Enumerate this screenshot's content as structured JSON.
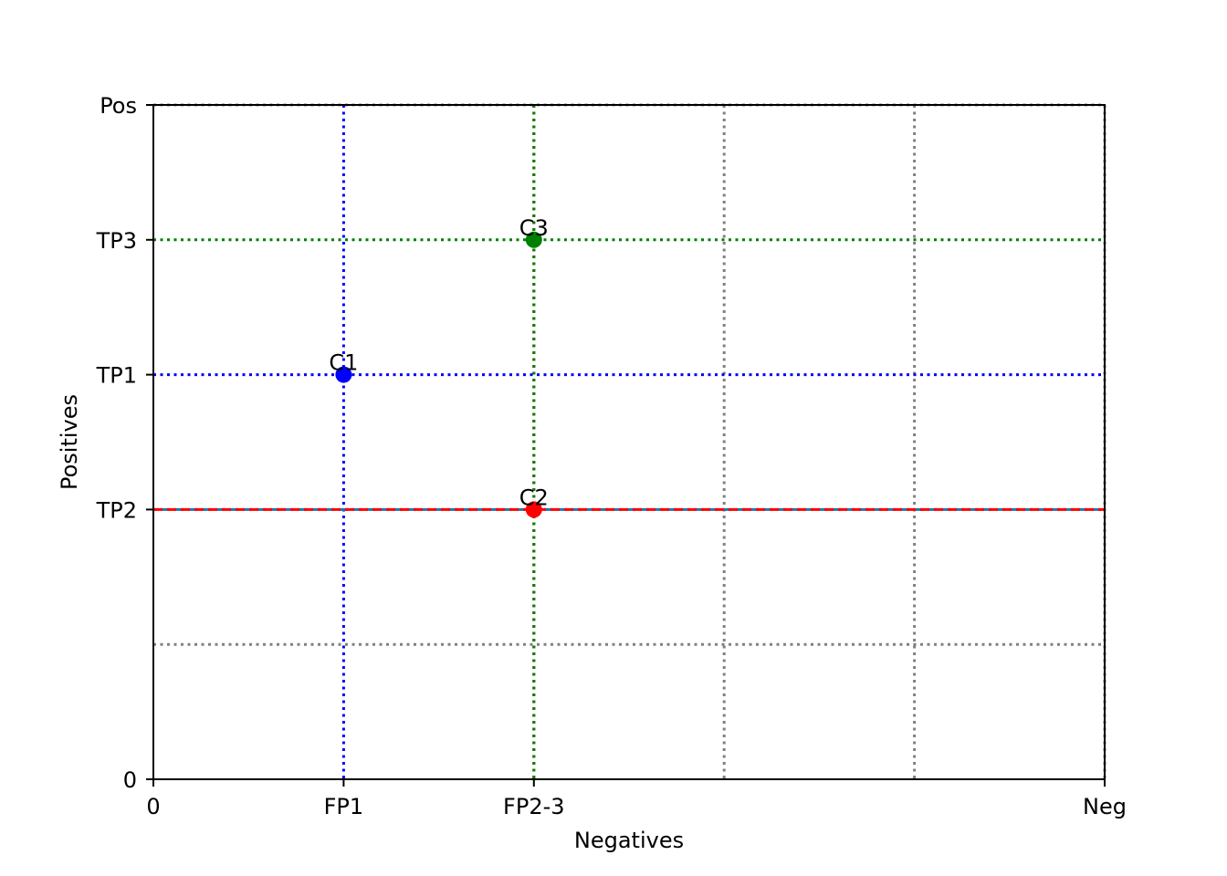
{
  "chart_data": {
    "type": "scatter",
    "xlabel": "Negatives",
    "ylabel": "Positives",
    "xlim": [
      0,
      5
    ],
    "ylim": [
      0,
      5
    ],
    "x_ticks": [
      {
        "value": 0,
        "label": "0"
      },
      {
        "value": 1,
        "label": "FP1"
      },
      {
        "value": 2,
        "label": "FP2-3"
      },
      {
        "value": 5,
        "label": "Neg"
      }
    ],
    "y_ticks": [
      {
        "value": 0,
        "label": "0"
      },
      {
        "value": 2,
        "label": "TP2"
      },
      {
        "value": 3,
        "label": "TP1"
      },
      {
        "value": 4,
        "label": "TP3"
      },
      {
        "value": 5,
        "label": "Pos"
      }
    ],
    "grid": {
      "vertical_gray": [
        3,
        4,
        5
      ],
      "horizontal_gray": [
        1,
        5
      ],
      "color": "#808080",
      "style": "dotted"
    },
    "points": [
      {
        "label": "C1",
        "x": 1,
        "y": 3,
        "color": "#0000ff",
        "line_style": "dotted"
      },
      {
        "label": "C2",
        "x": 2,
        "y": 2,
        "color": "#ff0000",
        "line_style": "dashed"
      },
      {
        "label": "C3",
        "x": 2,
        "y": 4,
        "color": "#008000",
        "line_style": "dotted"
      }
    ]
  }
}
